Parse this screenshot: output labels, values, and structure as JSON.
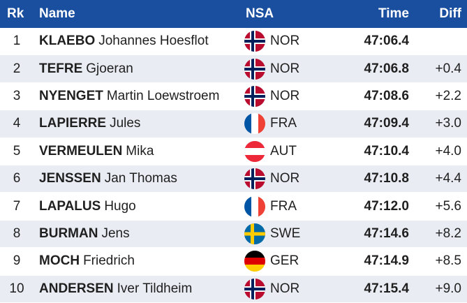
{
  "header": {
    "rank": "Rk",
    "name": "Name",
    "nsa": "NSA",
    "time": "Time",
    "diff": "Diff"
  },
  "rows": [
    {
      "rank": "1",
      "last": "KLAEBO",
      "first": "Johannes Hoesflot",
      "nsa": "NOR",
      "flag": "norway-flag-icon",
      "time": "47:06.4",
      "diff": ""
    },
    {
      "rank": "2",
      "last": "TEFRE",
      "first": "Gjoeran",
      "nsa": "NOR",
      "flag": "norway-flag-icon",
      "time": "47:06.8",
      "diff": "+0.4"
    },
    {
      "rank": "3",
      "last": "NYENGET",
      "first": "Martin Loewstroem",
      "nsa": "NOR",
      "flag": "norway-flag-icon",
      "time": "47:08.6",
      "diff": "+2.2"
    },
    {
      "rank": "4",
      "last": "LAPIERRE",
      "first": "Jules",
      "nsa": "FRA",
      "flag": "france-flag-icon",
      "time": "47:09.4",
      "diff": "+3.0"
    },
    {
      "rank": "5",
      "last": "VERMEULEN",
      "first": "Mika",
      "nsa": "AUT",
      "flag": "austria-flag-icon",
      "time": "47:10.4",
      "diff": "+4.0"
    },
    {
      "rank": "6",
      "last": "JENSSEN",
      "first": "Jan Thomas",
      "nsa": "NOR",
      "flag": "norway-flag-icon",
      "time": "47:10.8",
      "diff": "+4.4"
    },
    {
      "rank": "7",
      "last": "LAPALUS",
      "first": "Hugo",
      "nsa": "FRA",
      "flag": "france-flag-icon",
      "time": "47:12.0",
      "diff": "+5.6"
    },
    {
      "rank": "8",
      "last": "BURMAN",
      "first": "Jens",
      "nsa": "SWE",
      "flag": "sweden-flag-icon",
      "time": "47:14.6",
      "diff": "+8.2"
    },
    {
      "rank": "9",
      "last": "MOCH",
      "first": "Friedrich",
      "nsa": "GER",
      "flag": "germany-flag-icon",
      "time": "47:14.9",
      "diff": "+8.5"
    },
    {
      "rank": "10",
      "last": "ANDERSEN",
      "first": "Iver Tildheim",
      "nsa": "NOR",
      "flag": "norway-flag-icon",
      "time": "47:15.4",
      "diff": "+9.0"
    }
  ],
  "colors": {
    "header_bg": "#1a4fa0",
    "row_alt_bg": "#e9ecf3"
  }
}
